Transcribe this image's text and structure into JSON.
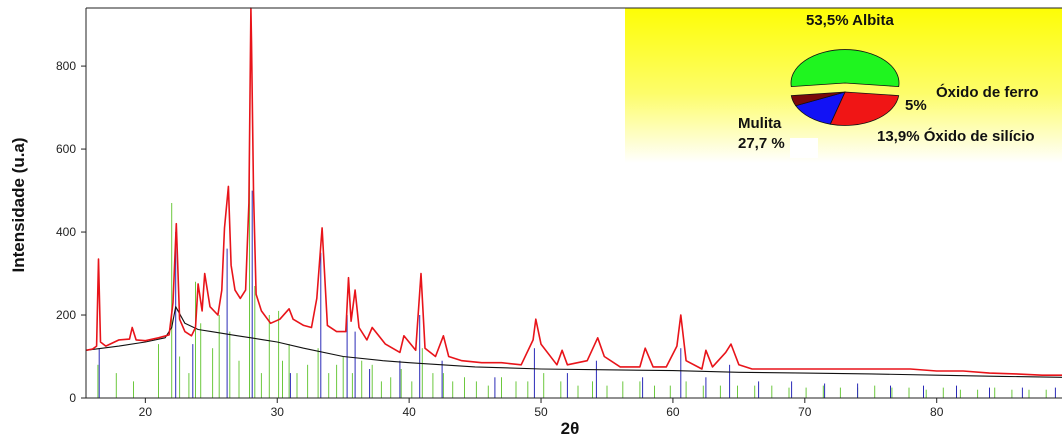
{
  "chart_data": [
    {
      "type": "line",
      "xlabel": "2θ",
      "ylabel": "Intensidade (u.a)",
      "xlim": [
        15.5,
        89.5
      ],
      "ylim": [
        0,
        940
      ],
      "x_ticks": [
        20,
        30,
        40,
        50,
        60,
        70,
        80
      ],
      "y_ticks": [
        0,
        200,
        400,
        600,
        800
      ],
      "grid": false,
      "series": [
        {
          "role": "observed",
          "color": "#e8141a",
          "x": [
            15.5,
            16.0,
            16.3,
            16.45,
            16.6,
            17.0,
            18.0,
            18.8,
            19.0,
            19.3,
            20.0,
            21.0,
            21.8,
            22.1,
            22.35,
            22.6,
            23.0,
            23.5,
            23.8,
            24.0,
            24.3,
            24.5,
            24.9,
            25.5,
            25.8,
            26.0,
            26.3,
            26.5,
            26.8,
            27.2,
            27.6,
            27.85,
            28.0,
            28.05,
            28.2,
            28.4,
            28.8,
            29.5,
            30.2,
            30.9,
            31.2,
            32.0,
            32.6,
            33.0,
            33.4,
            33.8,
            34.5,
            35.2,
            35.4,
            35.6,
            35.9,
            36.2,
            36.8,
            37.2,
            38.2,
            39.3,
            39.6,
            40.5,
            40.9,
            41.2,
            42.0,
            42.6,
            43.0,
            44.0,
            45.5,
            47.0,
            48.5,
            49.4,
            49.6,
            50.0,
            51.2,
            51.6,
            52.0,
            53.5,
            54.3,
            54.8,
            56.0,
            57.5,
            57.9,
            58.5,
            59.5,
            60.3,
            60.6,
            61.0,
            62.2,
            62.5,
            63.0,
            64.0,
            64.4,
            65.0,
            66.0,
            68.0,
            70.0,
            72.0,
            74.0,
            76.0,
            78.0,
            80.0,
            82.0,
            84.0,
            86.0,
            88.0,
            89.5
          ],
          "y": [
            115,
            118,
            125,
            335,
            135,
            125,
            140,
            142,
            170,
            140,
            138,
            145,
            152,
            230,
            420,
            190,
            160,
            150,
            170,
            275,
            210,
            300,
            220,
            200,
            260,
            410,
            510,
            320,
            260,
            240,
            260,
            470,
            940,
            860,
            500,
            250,
            210,
            180,
            190,
            215,
            190,
            175,
            170,
            240,
            410,
            175,
            160,
            160,
            290,
            185,
            260,
            170,
            140,
            170,
            130,
            110,
            150,
            115,
            300,
            120,
            100,
            150,
            100,
            90,
            85,
            85,
            80,
            140,
            190,
            130,
            80,
            115,
            80,
            90,
            145,
            100,
            75,
            75,
            120,
            75,
            75,
            125,
            200,
            90,
            70,
            115,
            75,
            110,
            130,
            80,
            70,
            70,
            70,
            70,
            70,
            70,
            70,
            65,
            65,
            60,
            58,
            55,
            55
          ]
        },
        {
          "role": "background",
          "color": "#111111",
          "x": [
            15.5,
            18.0,
            20.0,
            21.5,
            22.0,
            22.3,
            23.0,
            24.0,
            25.0,
            26.0,
            27.0,
            28.0,
            29.0,
            30.0,
            32.0,
            35.0,
            38.0,
            40.0,
            45.0,
            50.0,
            55.0,
            60.0,
            65.0,
            70.0,
            75.0,
            80.0,
            85.0,
            89.5
          ],
          "y": [
            115,
            125,
            135,
            145,
            170,
            220,
            180,
            165,
            160,
            155,
            150,
            145,
            140,
            135,
            120,
            100,
            90,
            85,
            75,
            70,
            68,
            66,
            62,
            60,
            58,
            55,
            52,
            50
          ]
        }
      ],
      "reference_lines": [
        {
          "color": "#6cc83e",
          "x": [
            16.4,
            17.8,
            19.1,
            21.0,
            22.0,
            22.6,
            23.3,
            23.8,
            24.2,
            25.1,
            25.6,
            26.4,
            27.1,
            27.9,
            28.3,
            28.8,
            29.4,
            30.1,
            30.4,
            30.9,
            31.5,
            32.3,
            33.1,
            33.9,
            34.5,
            35.0,
            35.7,
            36.4,
            37.2,
            37.9,
            38.6,
            39.4,
            40.2,
            41.0,
            41.8,
            42.6,
            43.3,
            44.2,
            45.1,
            46.0,
            47.0,
            48.1,
            49.0,
            50.2,
            51.5,
            52.8,
            53.9,
            55.0,
            56.2,
            57.5,
            58.6,
            59.8,
            61.0,
            62.3,
            63.6,
            64.9,
            66.2,
            67.5,
            68.8,
            70.1,
            71.4,
            72.7,
            74.0,
            75.3,
            76.6,
            77.9,
            79.2,
            80.5,
            81.8,
            83.1,
            84.4,
            85.7,
            87.0,
            88.3
          ],
          "y": [
            80,
            60,
            40,
            130,
            470,
            100,
            60,
            280,
            180,
            120,
            200,
            160,
            90,
            560,
            270,
            60,
            200,
            210,
            90,
            130,
            60,
            80,
            120,
            60,
            80,
            100,
            60,
            90,
            80,
            40,
            50,
            70,
            40,
            120,
            60,
            60,
            40,
            50,
            40,
            30,
            50,
            40,
            40,
            60,
            40,
            30,
            40,
            30,
            40,
            40,
            30,
            30,
            40,
            30,
            30,
            30,
            30,
            30,
            25,
            25,
            30,
            25,
            25,
            30,
            25,
            25,
            20,
            25,
            20,
            20,
            25,
            20,
            20,
            20
          ]
        },
        {
          "color": "#2a2ab8",
          "x": [
            16.5,
            22.3,
            23.6,
            26.2,
            28.1,
            31.0,
            33.3,
            35.3,
            35.9,
            37.0,
            39.3,
            40.8,
            42.5,
            46.5,
            49.5,
            52.0,
            54.2,
            57.7,
            60.6,
            62.5,
            64.3,
            66.5,
            69.0,
            71.5,
            74.0,
            76.5,
            79.0,
            81.5,
            84.0,
            86.5,
            89.0
          ],
          "y": [
            120,
            400,
            130,
            360,
            500,
            60,
            350,
            200,
            160,
            70,
            90,
            200,
            90,
            50,
            120,
            60,
            90,
            50,
            120,
            50,
            80,
            40,
            40,
            35,
            35,
            30,
            30,
            30,
            25,
            25,
            25
          ]
        }
      ]
    },
    {
      "type": "pie",
      "legend_background": [
        "#fdfd05",
        "#ffffff"
      ],
      "categories": [
        "Albita",
        "Mulita",
        "Óxido de silício",
        "Óxido de ferro"
      ],
      "values": [
        53.5,
        27.7,
        13.9,
        5.0
      ],
      "colors": [
        "#1ff51f",
        "#f01515",
        "#1212f5",
        "#7a0a0a"
      ],
      "labels": [
        "53,5% Albita",
        "Mulita",
        "27,7 %",
        "13,9% Óxido de silício",
        "5%",
        "Óxido de ferro"
      ]
    }
  ]
}
